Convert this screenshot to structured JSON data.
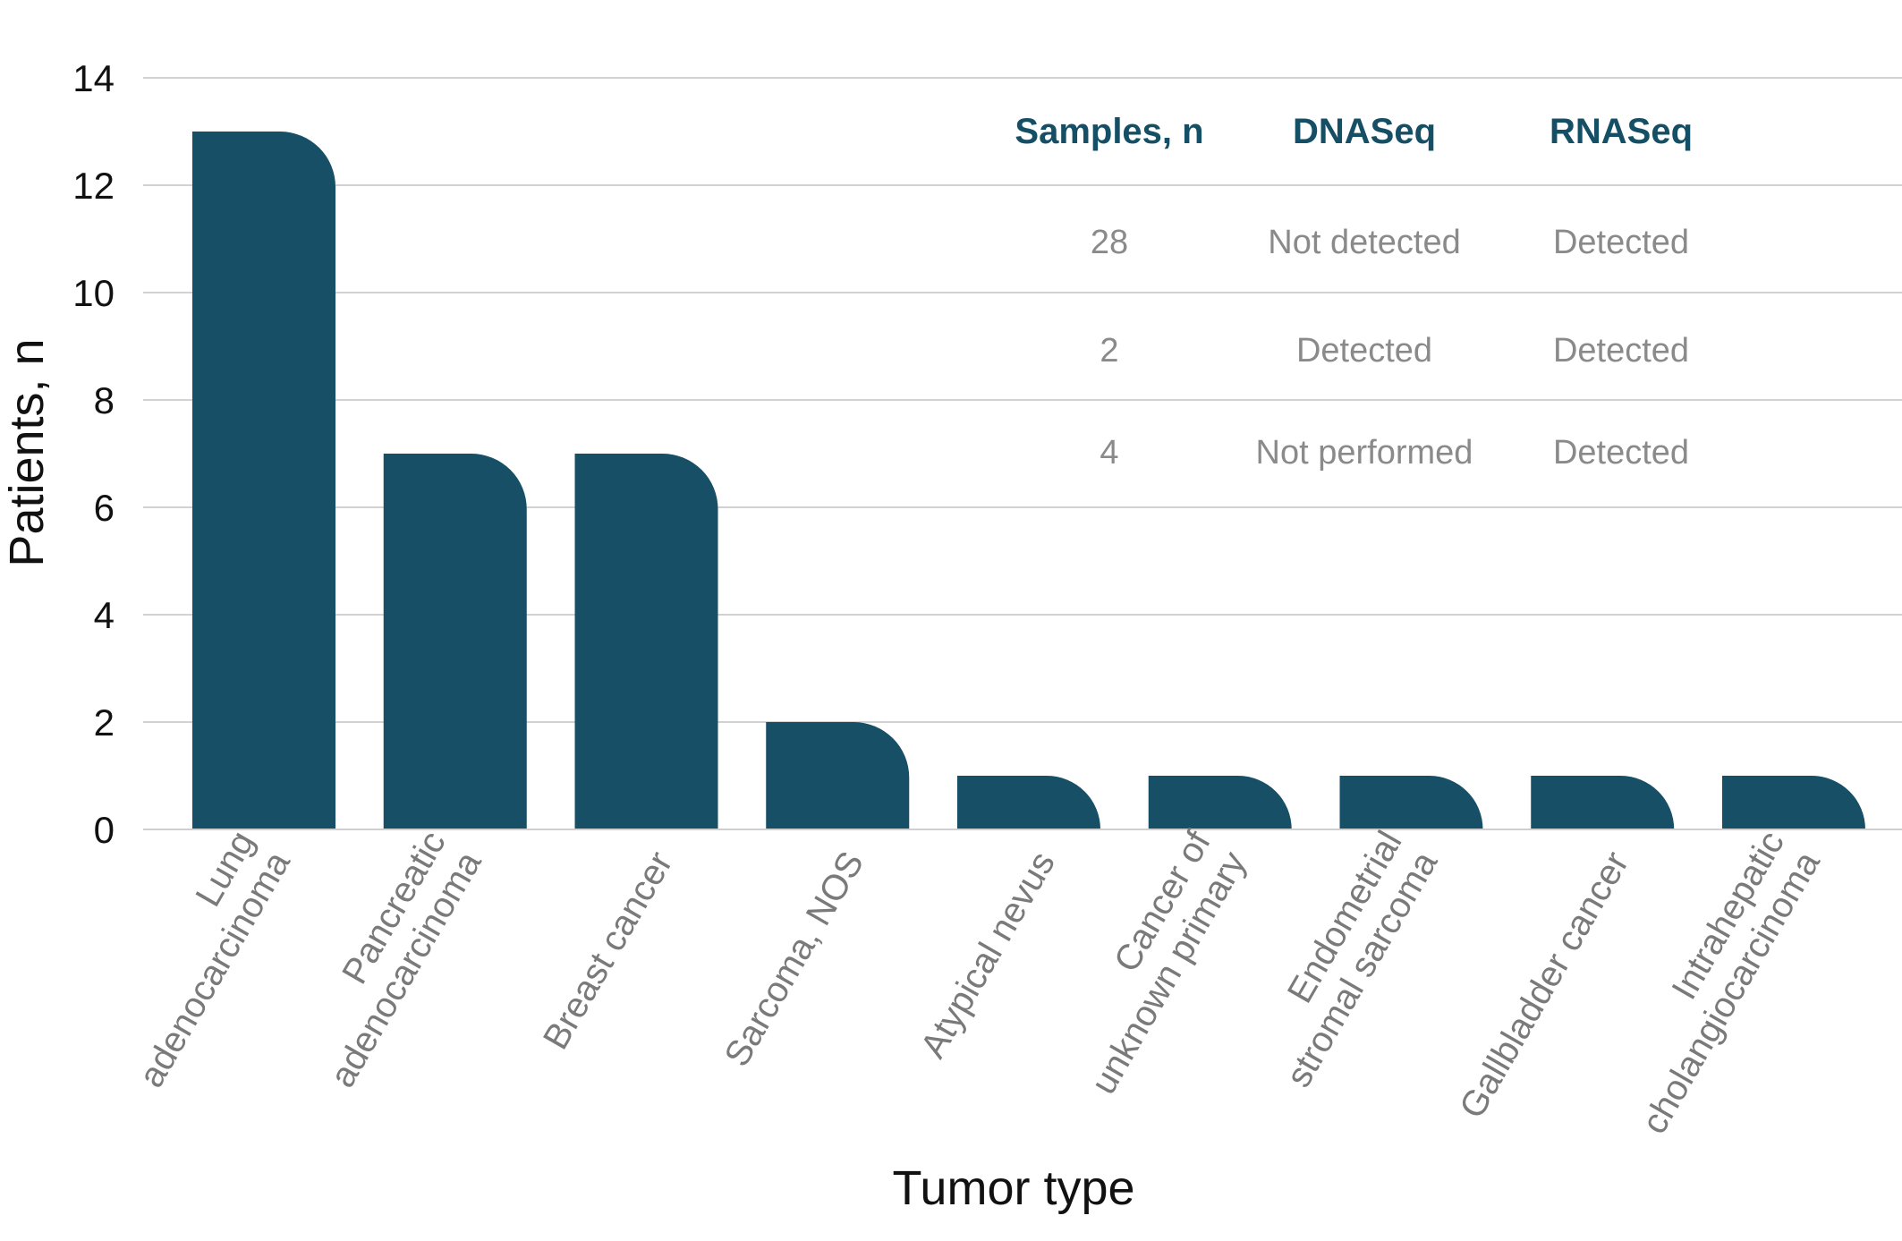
{
  "chart_data": {
    "type": "bar",
    "xlabel": "Tumor type",
    "ylabel": "Patients, n",
    "ylim": [
      0,
      14
    ],
    "yticks": [
      0,
      2,
      4,
      6,
      8,
      10,
      12,
      14
    ],
    "grid": true,
    "bar_color": "#164f66",
    "categories": [
      [
        "Lung",
        "adenocarcinoma"
      ],
      [
        "Pancreatic",
        "adenocarcinoma"
      ],
      [
        "Breast cancer"
      ],
      [
        "Sarcoma, NOS"
      ],
      [
        "Atypical nevus"
      ],
      [
        "Cancer of",
        "unknown primary"
      ],
      [
        "Endometrial",
        "stromal sarcoma"
      ],
      [
        "Gallbladder cancer"
      ],
      [
        "Intrahepatic",
        "cholangiocarcinoma"
      ]
    ],
    "values": [
      13,
      7,
      7,
      2,
      1,
      1,
      1,
      1,
      1
    ]
  },
  "inset_table": {
    "header_color": "#154f66",
    "headers": [
      "Samples, n",
      "DNASeq",
      "RNASeq"
    ],
    "rows": [
      [
        "28",
        "Not detected",
        "Detected"
      ],
      [
        "2",
        "Detected",
        "Detected"
      ],
      [
        "4",
        "Not performed",
        "Detected"
      ]
    ]
  }
}
